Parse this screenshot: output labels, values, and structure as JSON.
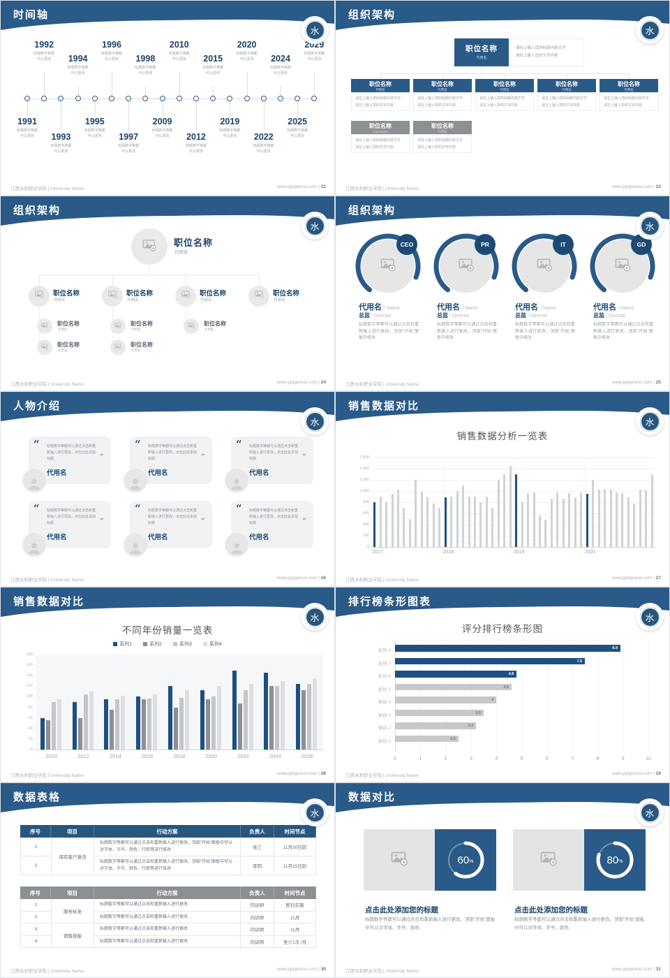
{
  "global": {
    "footer_left": "江西水利职业学院 | University Name",
    "footer_site": "www.pptgenius.com",
    "logo_glyph": "水",
    "colors": {
      "primary": "#2a5a88",
      "dark_blue": "#1d4a74",
      "bar_blue": "#1d4f82",
      "bar_gray": "#cfd2d6",
      "header_gray": "#8c8f93"
    }
  },
  "slides": [
    {
      "page": "22",
      "title": "时间轴",
      "kind": "timeline",
      "timeline": {
        "caption_line1": "标题数字等都",
        "caption_line2": "可以更改",
        "items": [
          {
            "year": "1991",
            "side": "bottom",
            "level": 1
          },
          {
            "year": "1992",
            "side": "top",
            "level": 1
          },
          {
            "year": "1993",
            "side": "bottom",
            "level": 2
          },
          {
            "year": "1994",
            "side": "top",
            "level": 2
          },
          {
            "year": "1995",
            "side": "bottom",
            "level": 1
          },
          {
            "year": "1996",
            "side": "top",
            "level": 1
          },
          {
            "year": "1997",
            "side": "bottom",
            "level": 2
          },
          {
            "year": "1998",
            "side": "top",
            "level": 2
          },
          {
            "year": "2009",
            "side": "bottom",
            "level": 1
          },
          {
            "year": "2010",
            "side": "top",
            "level": 1
          },
          {
            "year": "2012",
            "side": "bottom",
            "level": 2
          },
          {
            "year": "2015",
            "side": "top",
            "level": 2
          },
          {
            "year": "2019",
            "side": "bottom",
            "level": 1
          },
          {
            "year": "2020",
            "side": "top",
            "level": 1
          },
          {
            "year": "2022",
            "side": "bottom",
            "level": 2
          },
          {
            "year": "2024",
            "side": "top",
            "level": 2
          },
          {
            "year": "2025",
            "side": "bottom",
            "level": 1
          },
          {
            "year": "2029",
            "side": "top",
            "level": 1
          }
        ]
      }
    },
    {
      "page": "23",
      "title": "组织架构",
      "kind": "org",
      "org": {
        "root": {
          "title": "职位名称",
          "sub": "代用名"
        },
        "note_line1": "请在上输入您的标题内容文字",
        "note_line2": "请在上输入您的文字内容",
        "box_desc_line1": "请在上输入您的标题内容文字",
        "box_desc_line2": "请在上输入您的文字内容",
        "row1": [
          {
            "title": "职位名称",
            "sub": "代用名"
          },
          {
            "title": "职位名称",
            "sub": "代用名"
          },
          {
            "title": "职位名称",
            "sub": "代用名"
          },
          {
            "title": "职位名称",
            "sub": "代用名"
          },
          {
            "title": "职位名称",
            "sub": "代用名"
          }
        ],
        "row2": [
          {
            "title": "职位名称",
            "sub": "Your Name"
          },
          {
            "title": "职位名称",
            "sub": "代用名"
          }
        ]
      }
    },
    {
      "page": "24",
      "title": "组织架构",
      "kind": "tree",
      "tree": {
        "root": {
          "title": "职位名称",
          "sub": "代用名"
        },
        "branches": [
          {
            "title": "职位名称",
            "sub": "代用名",
            "children": [
              {
                "title": "职位名称",
                "sub": "代用名"
              },
              {
                "title": "职位名称",
                "sub": "代用名"
              }
            ]
          },
          {
            "title": "职位名称",
            "sub": "代用名",
            "children": [
              {
                "title": "职位名称",
                "sub": "代用名"
              },
              {
                "title": "职位名称",
                "sub": "代用名"
              }
            ]
          },
          {
            "title": "职位名称",
            "sub": "代用名",
            "children": [
              {
                "title": "职位名称",
                "sub": "代用名"
              }
            ]
          },
          {
            "title": "职位名称",
            "sub": "代用名",
            "children": []
          }
        ]
      }
    },
    {
      "page": "25",
      "title": "组织架构",
      "kind": "profiles",
      "profiles": {
        "badges": [
          "CEO",
          "PR",
          "IT",
          "GD"
        ],
        "name": "代用名",
        "name_en": "/ Name",
        "role": "总监",
        "role_en": "/ Director",
        "desc": "标题数字等都可以通过点击和重新输入进行更改，顶部“开始”面板中修改"
      }
    },
    {
      "page": "26",
      "title": "人物介绍",
      "kind": "people",
      "people": {
        "quote": "标题数字等都可以通过点击和重新输入进行更改，点击此处添加标题",
        "name": "代用名",
        "count": 6
      }
    },
    {
      "page": "27",
      "title": "销售数据对比",
      "kind": "vbars",
      "chart_ref": 0
    },
    {
      "page": "28",
      "title": "销售数据对比",
      "kind": "gbars",
      "chart_ref": 1
    },
    {
      "page": "29",
      "title": "排行榜条形图表",
      "kind": "hbars",
      "chart_ref": 2
    },
    {
      "page": "30",
      "title": "数据表格",
      "kind": "tables",
      "tables": [
        {
          "header_bg": "#27567f",
          "columns": [
            "序号",
            "项目",
            "行动方案",
            "负责人",
            "时间节点"
          ],
          "groups": [
            {
              "item": "保有客户激活",
              "rows": [
                {
                  "no": "1",
                  "plan": "标题数字等都可以通过点击和重新输入进行更改，顶部“开始”面板中可以对字体、字号、颜色、行距等进行修改",
                  "owner": "张三",
                  "time": "11月30日前"
                },
                {
                  "no": "2",
                  "plan": "标题数字等都可以通过点击和重新输入进行更改，顶部“开始”面板中可以对字体、字号、颜色、行距等进行修改",
                  "owner": "李四",
                  "time": "11月15日前"
                }
              ]
            }
          ]
        },
        {
          "header_bg": "#8c8f93",
          "columns": [
            "序号",
            "项目",
            "行动方案",
            "负责人",
            "时间节点"
          ],
          "groups": [
            {
              "item": "服务标准",
              "rows": [
                {
                  "no": "1",
                  "plan": "标题数字等都可以通过点击和重新输入进行更改",
                  "owner": "内训师",
                  "time": "即日实施"
                },
                {
                  "no": "2",
                  "plan": "标题数字等都可以通过点击和重新输入进行更改",
                  "owner": "内训师",
                  "time": "11月"
                }
              ]
            },
            {
              "item": "销售技能",
              "rows": [
                {
                  "no": "3",
                  "plan": "标题数字等都可以通过点击和重新输入进行更改",
                  "owner": "内训师",
                  "time": "11月"
                },
                {
                  "no": "4",
                  "plan": "标题数字等都可以通过点击和重新输入进行更改",
                  "owner": "内训师",
                  "time": "至少1次 /月"
                }
              ]
            }
          ]
        }
      ]
    },
    {
      "page": "31",
      "title": "数据对比",
      "kind": "compare",
      "compare": {
        "heading": "点击此处添加您的标题",
        "body": "标题数字等都可以通过点击和重新输入进行更改，顶部“开始”面板中可以对字体、字号、颜色",
        "cards": [
          {
            "percent": 60
          },
          {
            "percent": 80
          }
        ]
      }
    }
  ],
  "chart_data": [
    {
      "type": "bar",
      "title": "销售数据分析一览表",
      "x_groups": [
        "2017",
        "2018",
        "2019",
        "2020"
      ],
      "ylabel": "",
      "xlabel": "",
      "ylim": [
        0,
        1600
      ],
      "ytick_step": 200,
      "grid": true,
      "highlight_indices": [
        0,
        12,
        24,
        36
      ],
      "bar_color": "#cfd2d6",
      "highlight_color": "#1d4f82",
      "values": [
        800,
        900,
        800,
        950,
        1020,
        700,
        500,
        1200,
        990,
        890,
        770,
        700,
        890,
        900,
        1000,
        1100,
        900,
        900,
        800,
        900,
        700,
        1200,
        1300,
        1450,
        1300,
        800,
        960,
        970,
        560,
        490,
        860,
        980,
        860,
        960,
        890,
        980,
        950,
        1200,
        1030,
        1040,
        1030,
        980,
        960,
        890,
        770,
        1020,
        1010,
        1300
      ]
    },
    {
      "type": "bar",
      "title": "不同年份销量一览表",
      "categories": [
        "2010",
        "2012",
        "2014",
        "2016",
        "2018",
        "2020",
        "2022",
        "2024",
        "2026"
      ],
      "ylim": [
        0,
        180
      ],
      "ytick_step": 20,
      "legend_position": "top",
      "series": [
        {
          "name": "系列1",
          "color": "#1d4f82",
          "values": [
            60,
            90,
            95,
            100,
            120,
            112,
            150,
            145,
            125
          ]
        },
        {
          "name": "系列2",
          "color": "#8c8f93",
          "values": [
            55,
            60,
            75,
            95,
            80,
            95,
            88,
            120,
            112
          ]
        },
        {
          "name": "系列3",
          "color": "#c3c6ca",
          "values": [
            90,
            105,
            95,
            96,
            98,
            100,
            112,
            120,
            125
          ]
        },
        {
          "name": "系列4",
          "color": "#dcdee1",
          "values": [
            95,
            110,
            102,
            105,
            112,
            120,
            125,
            130,
            135
          ]
        }
      ]
    },
    {
      "type": "bar",
      "orientation": "horizontal",
      "title": "评分排行榜条形图",
      "categories": [
        "系列 8",
        "系列 7",
        "系列 6",
        "系列 5",
        "类别 4",
        "类别 3",
        "类别 2",
        "类别 1"
      ],
      "values": [
        8.9,
        7.5,
        4.8,
        4.6,
        4,
        3.5,
        3.2,
        2.5
      ],
      "colors": [
        "#1d4f82",
        "#1d4f82",
        "#1d4f82",
        "#c6c8cb",
        "#c6c8cb",
        "#c6c8cb",
        "#c6c8cb",
        "#c6c8cb"
      ],
      "xlim": [
        0,
        10
      ],
      "xtick_step": 1,
      "grid": true
    }
  ]
}
